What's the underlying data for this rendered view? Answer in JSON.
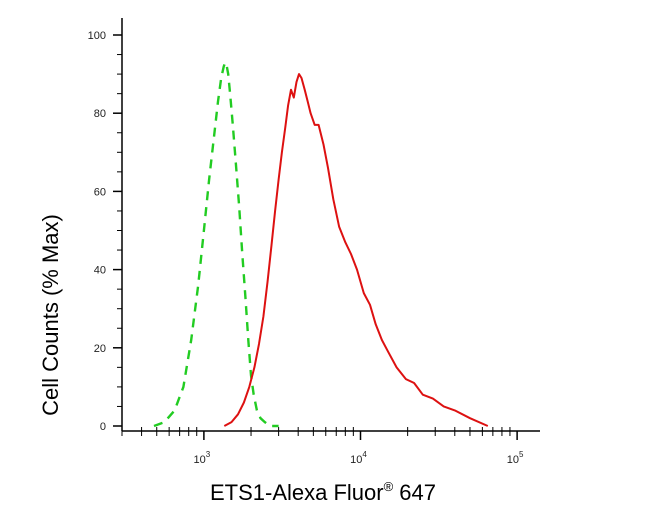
{
  "chart_data": {
    "type": "line",
    "xlabel": "ETS1-Alexa Fluor",
    "xlabel_sup": "®",
    "xlabel_suffix": " 647",
    "ylabel": "Cell Counts (% Max)",
    "x_scale": "log",
    "xlim": [
      300,
      140000
    ],
    "ylim": [
      0,
      102
    ],
    "x_ticks": [
      {
        "base": "10",
        "exp": "3",
        "value": 1000
      },
      {
        "base": "10",
        "exp": "4",
        "value": 10000
      },
      {
        "base": "10",
        "exp": "5",
        "value": 100000
      }
    ],
    "y_ticks": [
      "0",
      "20",
      "40",
      "60",
      "80",
      "100"
    ],
    "grid": false,
    "series": [
      {
        "color": "#22cc22",
        "style": "dashed",
        "x": [
          480,
          560,
          650,
          740,
          830,
          920,
          1000,
          1080,
          1160,
          1230,
          1290,
          1340,
          1370,
          1400,
          1430,
          1470,
          1530,
          1600,
          1680,
          1760,
          1840,
          1920,
          2000,
          2080,
          2180,
          2300,
          2450,
          2650,
          3000
        ],
        "y": [
          0,
          1,
          4,
          10,
          22,
          36,
          50,
          63,
          74,
          83,
          89,
          92,
          93,
          92,
          90,
          85,
          77,
          67,
          56,
          44,
          33,
          22,
          13,
          8,
          4,
          2,
          1,
          0,
          0
        ]
      },
      {
        "color": "#dd1111",
        "style": "solid",
        "x": [
          1350,
          1500,
          1650,
          1800,
          1950,
          2100,
          2250,
          2400,
          2550,
          2700,
          2850,
          3000,
          3150,
          3300,
          3450,
          3600,
          3750,
          3900,
          4050,
          4200,
          4400,
          4600,
          4800,
          5100,
          5400,
          5800,
          6200,
          6700,
          7300,
          8000,
          8700,
          9500,
          10500,
          11500,
          12500,
          13700,
          15000,
          17000,
          19500,
          22000,
          25000,
          29000,
          34000,
          40000,
          50000,
          65000
        ],
        "y": [
          0,
          1,
          3,
          6,
          10,
          15,
          21,
          28,
          37,
          46,
          55,
          63,
          70,
          76,
          82,
          86,
          84,
          88,
          90,
          89,
          86,
          83,
          80,
          77,
          77,
          72,
          66,
          58,
          51,
          47,
          44,
          40,
          34,
          31,
          26,
          22,
          19,
          15,
          12,
          11,
          8,
          7,
          5,
          4,
          2,
          0
        ]
      }
    ]
  }
}
